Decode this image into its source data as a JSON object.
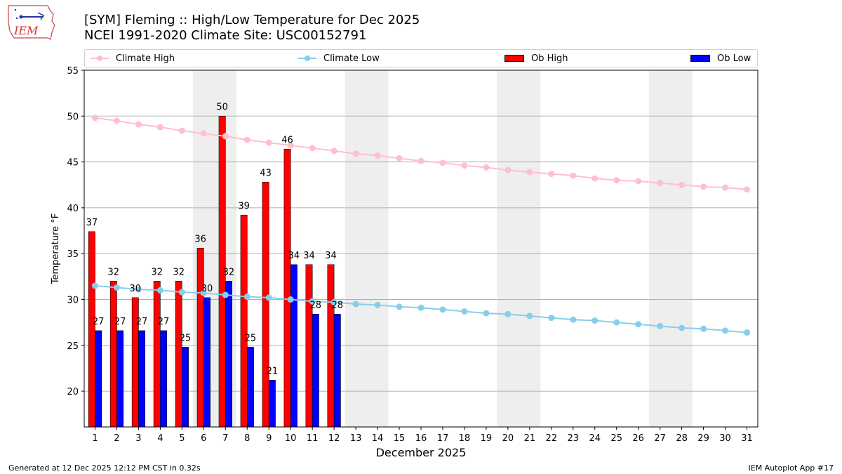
{
  "header": {
    "title_line1": "[SYM] Fleming :: High/Low Temperature for Dec 2025",
    "title_line2": "NCEI 1991-2020 Climate Site: USC00152791",
    "logo_text": "IEM"
  },
  "legend": {
    "climate_high": "Climate High",
    "climate_low": "Climate Low",
    "ob_high": "Ob High",
    "ob_low": "Ob Low"
  },
  "footer": {
    "generated": "Generated at 12 Dec 2025 12:12 PM CST in 0.32s",
    "app": "IEM Autoplot App #17"
  },
  "colors": {
    "climate_high": "#ffc0cb",
    "climate_low": "#87ceeb",
    "ob_high": "#ff0000",
    "ob_low": "#0000ff",
    "weekend_shade": "#eeeeee",
    "grid": "#b0b0b0"
  },
  "chart_data": {
    "type": "bar",
    "xlabel": "December 2025",
    "ylabel": "Temperature °F",
    "ylim": [
      16.1,
      55
    ],
    "yticks": [
      20,
      25,
      30,
      35,
      40,
      45,
      50,
      55
    ],
    "days": [
      1,
      2,
      3,
      4,
      5,
      6,
      7,
      8,
      9,
      10,
      11,
      12,
      13,
      14,
      15,
      16,
      17,
      18,
      19,
      20,
      21,
      22,
      23,
      24,
      25,
      26,
      27,
      28,
      29,
      30,
      31
    ],
    "shaded_weekend_spans": [
      [
        6,
        7
      ],
      [
        13,
        14
      ],
      [
        20,
        21
      ],
      [
        27,
        28
      ]
    ],
    "grid": "horizontal",
    "legend_position": "top",
    "series": [
      {
        "name": "Ob High",
        "type": "bar",
        "values": [
          37.4,
          32,
          30.2,
          32,
          32,
          35.6,
          50,
          39.2,
          42.8,
          46.4,
          33.8,
          33.8
        ],
        "labels": [
          "37",
          "32",
          "30",
          "32",
          "32",
          "36",
          "50",
          "39",
          "43",
          "46",
          "34",
          "34"
        ]
      },
      {
        "name": "Ob Low",
        "type": "bar",
        "values": [
          26.6,
          26.6,
          26.6,
          26.6,
          24.8,
          30.2,
          32,
          24.8,
          21.2,
          33.8,
          28.4,
          28.4
        ],
        "labels": [
          "27",
          "27",
          "27",
          "27",
          "25",
          "30",
          "32",
          "25",
          "21",
          "34",
          "28",
          "28"
        ]
      },
      {
        "name": "Climate High",
        "type": "line",
        "values": [
          49.8,
          49.5,
          49.1,
          48.8,
          48.4,
          48.1,
          47.8,
          47.4,
          47.1,
          46.8,
          46.5,
          46.2,
          45.9,
          45.7,
          45.4,
          45.1,
          44.9,
          44.6,
          44.4,
          44.1,
          43.9,
          43.7,
          43.5,
          43.2,
          43.0,
          42.9,
          42.7,
          42.5,
          42.3,
          42.2,
          42.0
        ]
      },
      {
        "name": "Climate Low",
        "type": "line",
        "values": [
          31.5,
          31.3,
          31.1,
          31.0,
          30.8,
          30.7,
          30.5,
          30.3,
          30.2,
          30.0,
          29.8,
          29.7,
          29.5,
          29.4,
          29.2,
          29.1,
          28.9,
          28.7,
          28.5,
          28.4,
          28.2,
          28.0,
          27.8,
          27.7,
          27.5,
          27.3,
          27.1,
          26.9,
          26.8,
          26.6,
          26.4
        ]
      }
    ]
  }
}
